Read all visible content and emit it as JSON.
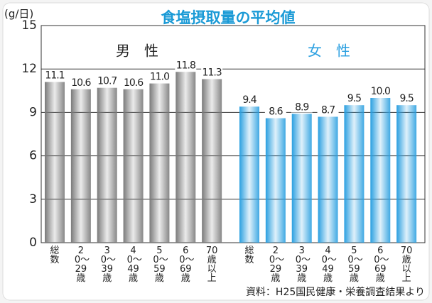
{
  "chart_data": {
    "type": "bar",
    "title": "食塩摂取量の平均値",
    "y_label": "(g/日)",
    "categories": [
      "総数",
      "20〜29歳",
      "30〜39歳",
      "40〜49歳",
      "50〜59歳",
      "60〜69歳",
      "70歳以上"
    ],
    "series": [
      {
        "name": "男　性",
        "color": "#7a7a7a",
        "values": [
          11.1,
          10.6,
          10.7,
          10.6,
          11.0,
          11.8,
          11.3
        ],
        "value_labels": [
          "11.1",
          "10.6",
          "10.7",
          "10.6",
          "11.0",
          "11.8",
          "11.3"
        ]
      },
      {
        "name": "女　性",
        "color": "#2a9fe0",
        "values": [
          9.4,
          8.6,
          8.9,
          8.7,
          9.5,
          10.0,
          9.5
        ],
        "value_labels": [
          "9.4",
          "8.6",
          "8.9",
          "8.7",
          "9.5",
          "10.0",
          "9.5"
        ]
      }
    ],
    "ylim": [
      0,
      15
    ],
    "yticks": [
      0,
      3,
      6,
      9,
      12,
      15
    ],
    "grid": true,
    "source": "資料：H25国民健康・栄養調査結果より"
  }
}
